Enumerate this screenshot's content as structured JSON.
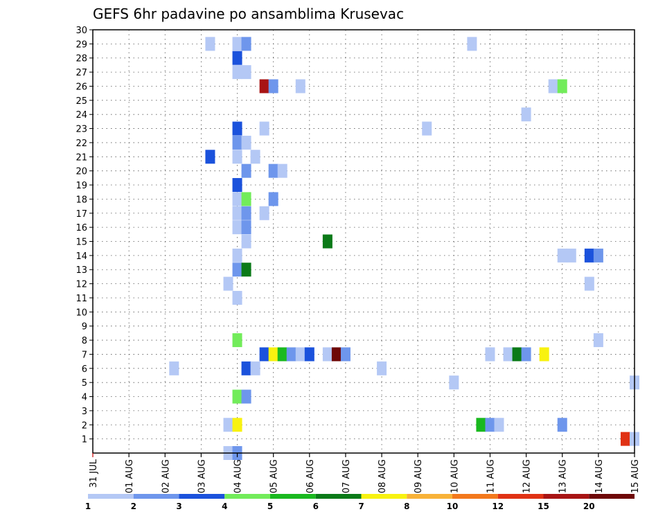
{
  "chart_data": {
    "type": "heatmap",
    "title": "GEFS 6hr padavine po ansamblima Krusevac",
    "ylim": [
      0,
      30
    ],
    "y_ticks": [
      "1",
      "2",
      "3",
      "4",
      "5",
      "6",
      "7",
      "8",
      "9",
      "10",
      "11",
      "12",
      "13",
      "14",
      "15",
      "16",
      "17",
      "18",
      "19",
      "20",
      "21",
      "22",
      "23",
      "24",
      "25",
      "26",
      "27",
      "28",
      "29",
      "30"
    ],
    "x_ticks": [
      "31 JUL",
      "01 AUG",
      "02 AUG",
      "03 AUG",
      "04 AUG",
      "05 AUG",
      "06 AUG",
      "07 AUG",
      "08 AUG",
      "09 AUG",
      "10 AUG",
      "11 AUG",
      "12 AUG",
      "13 AUG",
      "14 AUG",
      "15 AUG"
    ],
    "x_unit": "days since 31 JUL 00Z, 6-hourly steps",
    "colorbar": {
      "labels": [
        "1",
        "2",
        "3",
        "4",
        "5",
        "6",
        "7",
        "8",
        "10",
        "12",
        "15",
        "20"
      ],
      "colors": [
        "#b4c8f5",
        "#6e96ec",
        "#1b52dc",
        "#72ec5a",
        "#1ab91f",
        "#0b7a18",
        "#f8f210",
        "#f8b238",
        "#f3781c",
        "#e03214",
        "#a81414",
        "#6e0808"
      ]
    },
    "cells": [
      {
        "member": 29,
        "day": 3.25,
        "level": 1
      },
      {
        "member": 29,
        "day": 4.0,
        "level": 1
      },
      {
        "member": 29,
        "day": 4.25,
        "level": 2
      },
      {
        "member": 29,
        "day": 10.5,
        "level": 1
      },
      {
        "member": 28,
        "day": 4.0,
        "level": 3
      },
      {
        "member": 27,
        "day": 4.0,
        "level": 1
      },
      {
        "member": 27,
        "day": 4.25,
        "level": 1
      },
      {
        "member": 26,
        "day": 4.75,
        "level": 11
      },
      {
        "member": 26,
        "day": 5.0,
        "level": 2
      },
      {
        "member": 26,
        "day": 5.75,
        "level": 1
      },
      {
        "member": 26,
        "day": 12.75,
        "level": 1
      },
      {
        "member": 26,
        "day": 13.0,
        "level": 4
      },
      {
        "member": 24,
        "day": 12.0,
        "level": 1
      },
      {
        "member": 23,
        "day": 4.0,
        "level": 3
      },
      {
        "member": 23,
        "day": 4.75,
        "level": 1
      },
      {
        "member": 23,
        "day": 9.25,
        "level": 1
      },
      {
        "member": 22,
        "day": 4.0,
        "level": 2
      },
      {
        "member": 22,
        "day": 4.25,
        "level": 1
      },
      {
        "member": 21,
        "day": 3.25,
        "level": 3
      },
      {
        "member": 21,
        "day": 4.0,
        "level": 1
      },
      {
        "member": 21,
        "day": 4.5,
        "level": 1
      },
      {
        "member": 20,
        "day": 4.25,
        "level": 2
      },
      {
        "member": 20,
        "day": 5.0,
        "level": 2
      },
      {
        "member": 20,
        "day": 5.25,
        "level": 1
      },
      {
        "member": 19,
        "day": 4.0,
        "level": 3
      },
      {
        "member": 18,
        "day": 4.0,
        "level": 1
      },
      {
        "member": 18,
        "day": 4.25,
        "level": 4
      },
      {
        "member": 18,
        "day": 5.0,
        "level": 2
      },
      {
        "member": 17,
        "day": 4.0,
        "level": 1
      },
      {
        "member": 17,
        "day": 4.25,
        "level": 2
      },
      {
        "member": 17,
        "day": 4.75,
        "level": 1
      },
      {
        "member": 16,
        "day": 4.0,
        "level": 1
      },
      {
        "member": 16,
        "day": 4.25,
        "level": 2
      },
      {
        "member": 15,
        "day": 4.25,
        "level": 1
      },
      {
        "member": 15,
        "day": 6.5,
        "level": 6
      },
      {
        "member": 14,
        "day": 4.0,
        "level": 1
      },
      {
        "member": 14,
        "day": 13.0,
        "level": 1
      },
      {
        "member": 14,
        "day": 13.25,
        "level": 1
      },
      {
        "member": 14,
        "day": 13.75,
        "level": 3
      },
      {
        "member": 14,
        "day": 14.0,
        "level": 2
      },
      {
        "member": 13,
        "day": 4.0,
        "level": 2
      },
      {
        "member": 13,
        "day": 4.25,
        "level": 6
      },
      {
        "member": 12,
        "day": 3.75,
        "level": 1
      },
      {
        "member": 12,
        "day": 13.75,
        "level": 1
      },
      {
        "member": 11,
        "day": 4.0,
        "level": 1
      },
      {
        "member": 8,
        "day": 4.0,
        "level": 4
      },
      {
        "member": 8,
        "day": 14.0,
        "level": 1
      },
      {
        "member": 7,
        "day": 4.75,
        "level": 3
      },
      {
        "member": 7,
        "day": 5.0,
        "level": 7
      },
      {
        "member": 7,
        "day": 5.25,
        "level": 5
      },
      {
        "member": 7,
        "day": 5.5,
        "level": 2
      },
      {
        "member": 7,
        "day": 5.75,
        "level": 1
      },
      {
        "member": 7,
        "day": 6.0,
        "level": 3
      },
      {
        "member": 7,
        "day": 6.5,
        "level": 1
      },
      {
        "member": 7,
        "day": 6.75,
        "level": 12
      },
      {
        "member": 7,
        "day": 7.0,
        "level": 2
      },
      {
        "member": 7,
        "day": 11.0,
        "level": 1
      },
      {
        "member": 7,
        "day": 11.5,
        "level": 1
      },
      {
        "member": 7,
        "day": 11.75,
        "level": 6
      },
      {
        "member": 7,
        "day": 12.0,
        "level": 2
      },
      {
        "member": 7,
        "day": 12.5,
        "level": 7
      },
      {
        "member": 6,
        "day": 2.25,
        "level": 1
      },
      {
        "member": 6,
        "day": 4.25,
        "level": 3
      },
      {
        "member": 6,
        "day": 4.5,
        "level": 1
      },
      {
        "member": 6,
        "day": 8.0,
        "level": 1
      },
      {
        "member": 5,
        "day": 10.0,
        "level": 1
      },
      {
        "member": 5,
        "day": 15.0,
        "level": 1
      },
      {
        "member": 4,
        "day": 4.0,
        "level": 4
      },
      {
        "member": 4,
        "day": 4.25,
        "level": 2
      },
      {
        "member": 2,
        "day": 3.75,
        "level": 1
      },
      {
        "member": 2,
        "day": 4.0,
        "level": 7
      },
      {
        "member": 2,
        "day": 10.75,
        "level": 5
      },
      {
        "member": 2,
        "day": 11.0,
        "level": 2
      },
      {
        "member": 2,
        "day": 11.25,
        "level": 1
      },
      {
        "member": 2,
        "day": 13.0,
        "level": 2
      },
      {
        "member": 1,
        "day": 14.75,
        "level": 10
      },
      {
        "member": 1,
        "day": 15.0,
        "level": 1
      },
      {
        "member": 0,
        "day": 3.75,
        "level": 1
      },
      {
        "member": 0,
        "day": 4.0,
        "level": 2
      }
    ]
  }
}
